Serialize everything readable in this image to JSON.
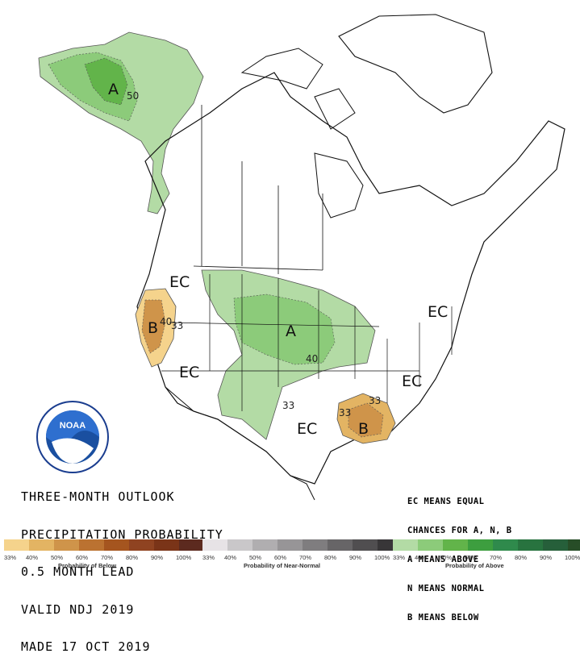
{
  "title": {
    "line1": "THREE-MONTH OUTLOOK",
    "line2": "PRECIPITATION PROBABILITY",
    "line3": "0.5 MONTH LEAD",
    "line4": "VALID NDJ 2019",
    "line5": "MADE 17 OCT 2019"
  },
  "legend_notes": {
    "line1": "EC MEANS EQUAL",
    "line2": "CHANCES FOR A, N, B",
    "line3": "A MEANS ABOVE",
    "line4": "N MEANS NORMAL",
    "line5": "B MEANS BELOW"
  },
  "map_labels": {
    "alaska_above": "A",
    "alaska_contour": "50",
    "west_ec": "EC",
    "california_below": "B",
    "california_contour": "40",
    "california_contour_33": "33",
    "plains_above": "A",
    "plains_contour": "40",
    "southwest_ec": "EC",
    "southern_ec": "EC",
    "texas_contour": "33",
    "gulf_below": "B",
    "gulf_contour_33": "33",
    "gulf_contour_33b": "33",
    "northeast_ec": "EC",
    "southeast_ec": "EC"
  },
  "logo": {
    "text": "NOAA"
  },
  "scale": {
    "below": {
      "title": "Probability of Below",
      "colors": [
        "#f5d38c",
        "#e3b463",
        "#cf944a",
        "#bb7231",
        "#a5551f",
        "#8f4321",
        "#7a3418",
        "#5c2a1f"
      ],
      "ticks": [
        "33%",
        "40%",
        "50%",
        "60%",
        "70%",
        "80%",
        "90%",
        "100%"
      ]
    },
    "near_normal": {
      "title": "Probability of Near-Normal",
      "colors": [
        "#e7e3e6",
        "#c9c7c9",
        "#b0aeb0",
        "#979597",
        "#7f7d7f",
        "#676567",
        "#504e50",
        "#383638"
      ],
      "ticks": [
        "33%",
        "40%",
        "50%",
        "60%",
        "70%",
        "80%",
        "90%",
        "100%"
      ]
    },
    "above": {
      "title": "Probability of Above",
      "colors": [
        "#b3dba5",
        "#8ccb7a",
        "#62b44a",
        "#3d9e3f",
        "#2f8a4c",
        "#28733f",
        "#265f3a",
        "#274d27"
      ],
      "ticks": [
        "33%",
        "40%",
        "50%",
        "60%",
        "70%",
        "80%",
        "90%",
        "100%"
      ]
    }
  }
}
